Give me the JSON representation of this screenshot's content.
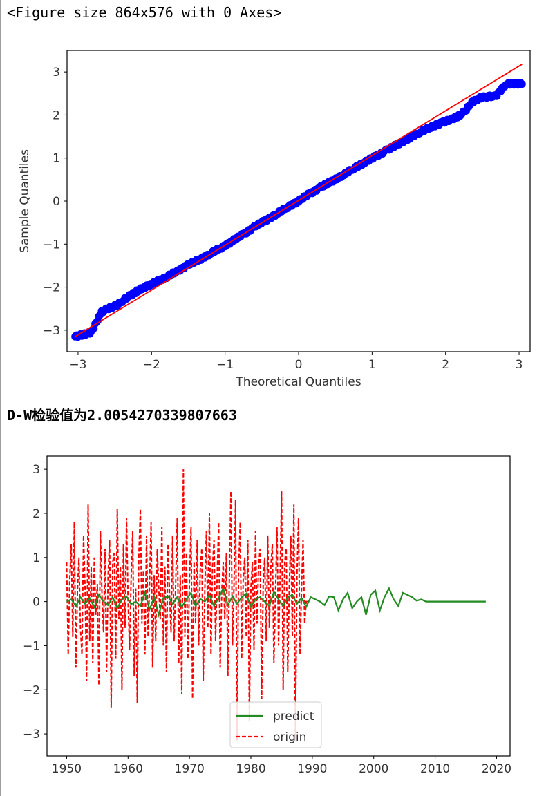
{
  "output": {
    "figure_repr": "<Figure size 864x576 with 0 Axes>",
    "dw_text": "D-W检验值为2.0054270339807663"
  },
  "chart_data": [
    {
      "type": "scatter",
      "title": "",
      "xlabel": "Theoretical Quantiles",
      "ylabel": "Sample Quantiles",
      "xlim": [
        -3.15,
        3.15
      ],
      "ylim": [
        -3.5,
        3.5
      ],
      "xticks": [
        -3,
        -2,
        -1,
        0,
        1,
        2,
        3
      ],
      "xtick_labels": [
        "−3",
        "−2",
        "−1",
        "0",
        "1",
        "2",
        "3"
      ],
      "yticks": [
        -3,
        -2,
        -1,
        0,
        1,
        2,
        3
      ],
      "ytick_labels": [
        "−3",
        "−2",
        "−1",
        "0",
        "1",
        "2",
        "3"
      ],
      "grid": false,
      "series": [
        {
          "kind": "points",
          "color": "#0000ff",
          "points": [
            [
              -3.04,
              -3.15
            ],
            [
              -2.82,
              -3.05
            ],
            [
              -2.68,
              -2.58
            ],
            [
              -2.6,
              -2.5
            ],
            [
              -2.53,
              -2.46
            ],
            [
              -2.46,
              -2.4
            ],
            [
              -2.38,
              -2.3
            ],
            [
              -2.3,
              -2.2
            ],
            [
              -2.2,
              -2.1
            ],
            [
              -2.1,
              -2.0
            ],
            [
              -2.0,
              -1.93
            ],
            [
              -1.9,
              -1.85
            ],
            [
              -1.78,
              -1.75
            ],
            [
              -1.65,
              -1.63
            ],
            [
              -1.5,
              -1.48
            ],
            [
              -1.35,
              -1.36
            ],
            [
              -1.2,
              -1.22
            ],
            [
              -1.05,
              -1.08
            ],
            [
              -0.9,
              -0.93
            ],
            [
              -0.75,
              -0.77
            ],
            [
              -0.6,
              -0.6
            ],
            [
              -0.45,
              -0.45
            ],
            [
              -0.3,
              -0.3
            ],
            [
              -0.15,
              -0.14
            ],
            [
              0.0,
              0.0
            ],
            [
              0.15,
              0.17
            ],
            [
              0.3,
              0.32
            ],
            [
              0.45,
              0.46
            ],
            [
              0.6,
              0.6
            ],
            [
              0.75,
              0.76
            ],
            [
              0.9,
              0.9
            ],
            [
              1.05,
              1.04
            ],
            [
              1.2,
              1.18
            ],
            [
              1.35,
              1.32
            ],
            [
              1.5,
              1.46
            ],
            [
              1.65,
              1.6
            ],
            [
              1.8,
              1.72
            ],
            [
              1.95,
              1.82
            ],
            [
              2.08,
              1.9
            ],
            [
              2.18,
              1.98
            ],
            [
              2.26,
              2.08
            ],
            [
              2.32,
              2.22
            ],
            [
              2.38,
              2.32
            ],
            [
              2.45,
              2.38
            ],
            [
              2.52,
              2.42
            ],
            [
              2.6,
              2.43
            ],
            [
              2.68,
              2.43
            ],
            [
              2.82,
              2.72
            ],
            [
              3.04,
              2.72
            ]
          ]
        },
        {
          "kind": "line",
          "color": "#ff0000",
          "x": [
            -3.04,
            3.04
          ],
          "y": [
            -3.15,
            3.18
          ]
        }
      ]
    },
    {
      "type": "line",
      "title": "",
      "xlabel": "",
      "ylabel": "",
      "xlim": [
        1946.8,
        2022.2
      ],
      "ylim": [
        -3.5,
        3.3
      ],
      "xticks": [
        1950,
        1960,
        1970,
        1980,
        1990,
        2000,
        2010,
        2020
      ],
      "xtick_labels": [
        "1950",
        "1960",
        "1970",
        "1980",
        "1990",
        "2000",
        "2010",
        "2020"
      ],
      "yticks": [
        -3,
        -2,
        -1,
        0,
        1,
        2,
        3
      ],
      "ytick_labels": [
        "−3",
        "−2",
        "−1",
        "0",
        "1",
        "2",
        "3"
      ],
      "grid": false,
      "legend": {
        "position": "lower-center"
      },
      "series": [
        {
          "name": "predict",
          "color": "#228b22",
          "style": "solid",
          "x_start": 1950.0,
          "x_step": 0.75,
          "values": [
            0.0,
            0.05,
            -0.1,
            0.1,
            -0.05,
            0.08,
            -0.12,
            0.15,
            0.0,
            -0.08,
            0.1,
            -0.15,
            0.05,
            0.12,
            -0.06,
            0.0,
            -0.1,
            0.2,
            -0.18,
            0.1,
            -0.3,
            0.08,
            0.12,
            -0.05,
            0.1,
            -0.12,
            0.05,
            0.2,
            -0.1,
            0.06,
            0.0,
            0.15,
            -0.1,
            0.08,
            0.3,
            -0.08,
            0.12,
            -0.05,
            0.1,
            0.18,
            -0.12,
            0.05,
            0.1,
            0.0,
            -0.1,
            0.22,
            0.05,
            -0.1,
            0.1,
            0.15,
            -0.05,
            0.08,
            -0.12,
            0.1,
            0.05,
            0.0,
            -0.08,
            0.12,
            0.1,
            -0.2,
            0.05,
            0.2,
            -0.15,
            0.0,
            0.1,
            -0.3,
            0.15,
            0.25,
            -0.2,
            0.1,
            0.3,
            0.05,
            -0.1,
            0.2,
            0.15,
            0.1,
            0.02,
            0.05,
            0.0,
            0.0,
            0.0,
            0.0,
            0.0,
            0.0,
            0.0,
            0.0,
            0.0,
            0.0,
            0.0,
            0.0,
            0.0,
            0.0
          ]
        },
        {
          "name": "origin",
          "color": "#ff0000",
          "style": "dashed",
          "x_start": 1950.0,
          "x_step": 0.25,
          "values": [
            0.9,
            -1.2,
            0.5,
            1.3,
            -0.8,
            1.8,
            -1.5,
            0.2,
            1.0,
            -0.6,
            -1.2,
            1.5,
            0.3,
            -1.8,
            2.2,
            -0.9,
            0.8,
            -1.4,
            1.0,
            -0.3,
            0.4,
            -1.9,
            1.6,
            0.2,
            -0.7,
            1.2,
            -1.6,
            0.6,
            1.4,
            -2.4,
            0.9,
            1.1,
            -1.3,
            2.1,
            -0.4,
            0.8,
            -2.0,
            1.3,
            -0.6,
            1.9,
            0.0,
            -1.1,
            0.5,
            1.6,
            -1.7,
            0.3,
            -2.3,
            1.0,
            2.1,
            -0.5,
            0.7,
            -1.2,
            1.5,
            -0.8,
            0.4,
            1.8,
            -1.5,
            0.6,
            -0.9,
            1.2,
            0.3,
            -0.4,
            1.7,
            -1.0,
            0.8,
            -1.6,
            1.3,
            0.2,
            -0.7,
            1.5,
            -0.9,
            0.4,
            1.9,
            -1.4,
            0.6,
            -2.1,
            3.0,
            -0.8,
            1.1,
            -1.3,
            0.5,
            1.7,
            -2.2,
            0.9,
            -0.5,
            1.4,
            -1.0,
            0.7,
            1.2,
            -1.8,
            0.3,
            1.6,
            -0.6,
            2.0,
            -1.2,
            0.8,
            1.4,
            -0.9,
            0.5,
            1.8,
            -1.5,
            0.2,
            0.9,
            -0.4,
            1.1,
            -1.7,
            0.6,
            2.5,
            -1.0,
            0.4,
            2.3,
            -3.15,
            0.7,
            1.8,
            -1.3,
            0.5,
            1.0,
            -0.8,
            1.4,
            -2.7,
            0.3,
            0.9,
            -1.1,
            1.6,
            -0.5,
            0.8,
            1.2,
            -2.2,
            0.4,
            1.0,
            -0.9,
            1.5,
            -0.6,
            0.8,
            1.3,
            -1.4,
            0.2,
            1.7,
            -1.0,
            0.5,
            2.5,
            -2.0,
            0.9,
            1.2,
            -1.6,
            0.4,
            1.5,
            -0.8,
            2.2,
            -3.15,
            0.6,
            1.9,
            -1.2,
            0.3,
            1.4,
            -0.5,
            0.0,
            0.0
          ]
        }
      ]
    }
  ]
}
